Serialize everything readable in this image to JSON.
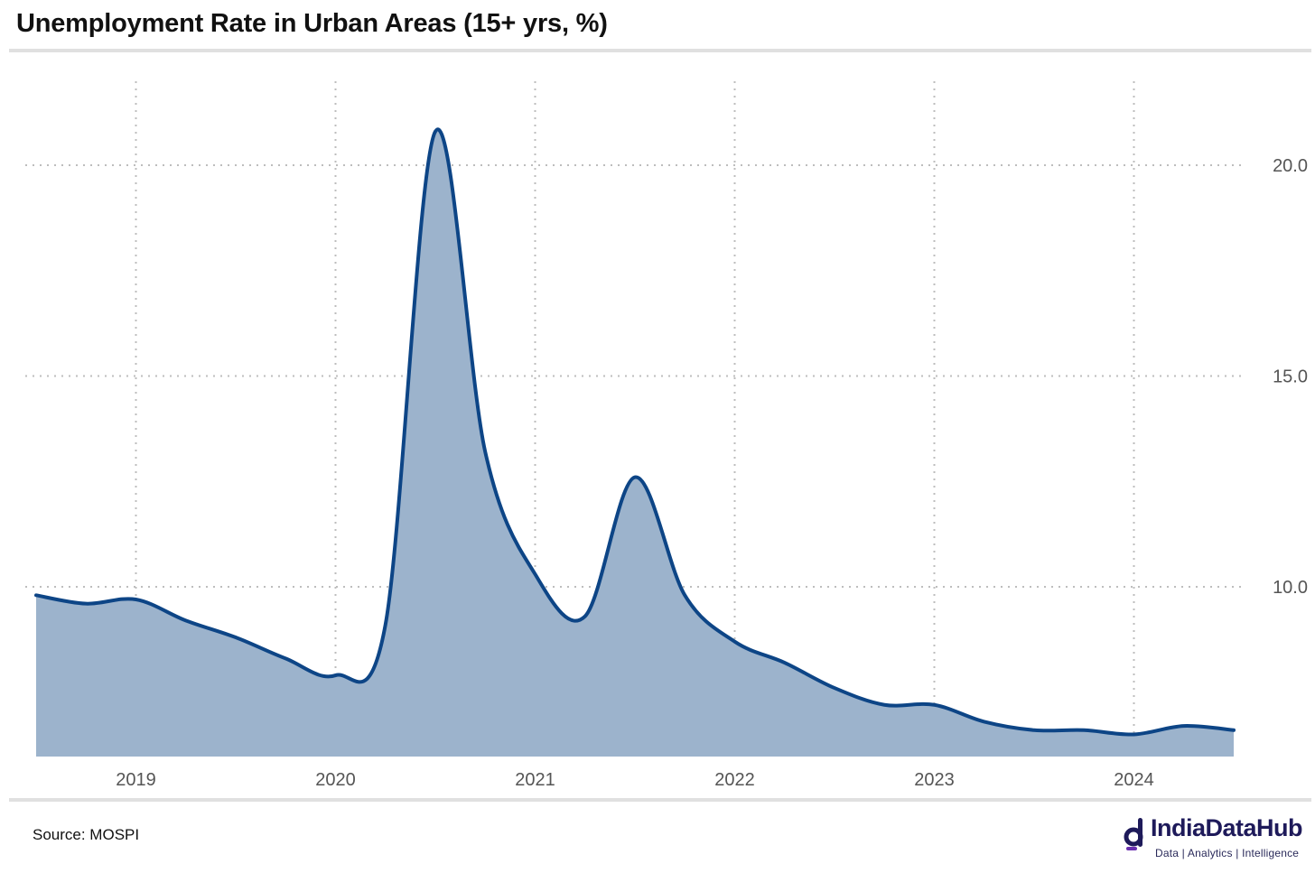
{
  "chart_data": {
    "type": "area",
    "title": "Unemployment Rate in Urban Areas (15+ yrs, %)",
    "xlabel": "",
    "ylabel": "",
    "x_ticks": [
      2019,
      2020,
      2021,
      2022,
      2023,
      2024
    ],
    "y_ticks": [
      "10.0",
      "15.0",
      "20.0"
    ],
    "ylim": [
      6.2,
      22.0
    ],
    "xlim": [
      2018.5,
      2024.75
    ],
    "grid": "dotted",
    "y_axis_position": "right",
    "colors": {
      "line": "#0d4586",
      "fill": "#9cb3cc",
      "grid": "#bdbdbd"
    },
    "series": [
      {
        "x": [
          2018.5,
          2018.75,
          2019.0,
          2019.25,
          2019.5,
          2019.75,
          2020.0,
          2020.25,
          2020.5,
          2020.75,
          2021.0,
          2021.25,
          2021.5,
          2021.75,
          2022.0,
          2022.25,
          2022.5,
          2022.75,
          2023.0,
          2023.25,
          2023.5,
          2023.75,
          2024.0,
          2024.25,
          2024.5
        ],
        "y": [
          9.8,
          9.6,
          9.7,
          9.2,
          8.8,
          8.3,
          7.9,
          9.1,
          20.8,
          13.2,
          10.3,
          9.3,
          12.6,
          9.8,
          8.7,
          8.2,
          7.6,
          7.2,
          7.2,
          6.8,
          6.6,
          6.6,
          6.5,
          6.7,
          6.6
        ]
      }
    ]
  },
  "source": "Source: MOSPI",
  "logo": {
    "name": "IndiaDataHub",
    "tagline": "Data | Analytics | Intelligence"
  }
}
